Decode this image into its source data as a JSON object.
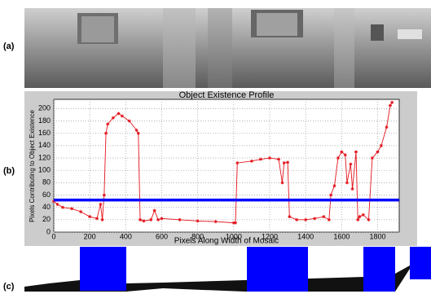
{
  "panel_labels": [
    "(a)",
    "(b)",
    "(c)"
  ],
  "chart_data": {
    "type": "line",
    "title": "Object Existence Profile",
    "x_label": "Pixels Along Width of Mosaic",
    "y_label": "Pixels Contributing to Object Existence",
    "x": [
      0,
      20,
      50,
      100,
      150,
      200,
      240,
      260,
      270,
      280,
      290,
      300,
      330,
      360,
      380,
      420,
      460,
      470,
      480,
      500,
      540,
      560,
      580,
      600,
      700,
      800,
      900,
      1000,
      1010,
      1020,
      1100,
      1150,
      1200,
      1250,
      1270,
      1280,
      1300,
      1310,
      1350,
      1400,
      1450,
      1500,
      1530,
      1540,
      1560,
      1580,
      1600,
      1620,
      1630,
      1650,
      1660,
      1680,
      1690,
      1700,
      1720,
      1750,
      1770,
      1800,
      1820,
      1850,
      1870,
      1880
    ],
    "values": [
      50,
      45,
      40,
      38,
      33,
      25,
      22,
      45,
      20,
      60,
      160,
      175,
      185,
      192,
      188,
      180,
      165,
      160,
      20,
      18,
      20,
      35,
      20,
      22,
      20,
      18,
      17,
      15,
      15,
      112,
      115,
      118,
      120,
      118,
      80,
      112,
      113,
      25,
      20,
      20,
      22,
      25,
      20,
      60,
      75,
      120,
      130,
      125,
      80,
      110,
      70,
      130,
      20,
      25,
      28,
      20,
      120,
      130,
      140,
      170,
      205,
      210
    ],
    "color": "#e3141c",
    "threshold": 52,
    "threshold_color": "#0000ff",
    "xlim": [
      0,
      1920
    ],
    "xticks": [
      0,
      200,
      400,
      600,
      800,
      1000,
      1200,
      1400,
      1600,
      1800
    ],
    "ylim": [
      0,
      215
    ],
    "yticks": [
      0,
      20,
      40,
      60,
      80,
      100,
      120,
      140,
      160,
      180,
      200
    ],
    "grid": true
  }
}
